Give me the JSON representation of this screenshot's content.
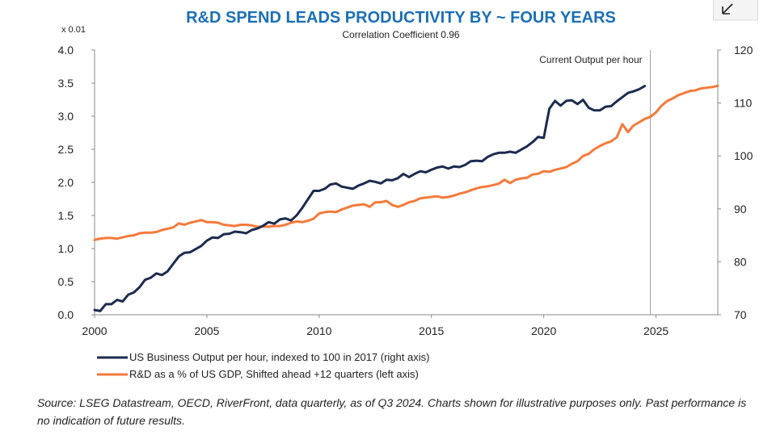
{
  "chart_data": {
    "type": "line",
    "title": "R&D SPEND LEADS PRODUCTIVITY BY ~ FOUR YEARS",
    "subtitle": "Correlation Coefficient 0.96",
    "left_axis": {
      "unit_label": "x 0.01",
      "ylim": [
        0,
        4
      ],
      "ticks": [
        "0.0",
        "0.5",
        "1.0",
        "1.5",
        "2.0",
        "2.5",
        "3.0",
        "3.5",
        "4.0"
      ]
    },
    "right_axis": {
      "ylim": [
        70,
        120
      ],
      "ticks": [
        "70",
        "80",
        "90",
        "100",
        "110",
        "120"
      ]
    },
    "x_axis": {
      "xlim": [
        2000,
        2027.75
      ],
      "ticks": [
        "2000",
        "2005",
        "2010",
        "2015",
        "2020",
        "2025"
      ]
    },
    "annotation": {
      "text": "Current Output per hour",
      "x": 2024.75
    },
    "legend_position": "bottom",
    "grid": false,
    "series": [
      {
        "name": "US Business Output per hour, indexed to 100 in 2017 (right axis)",
        "axis": "right",
        "color": "#1c2b4e",
        "points": [
          [
            2000.0,
            70.9
          ],
          [
            2000.25,
            70.7
          ],
          [
            2000.5,
            72.0
          ],
          [
            2000.75,
            72.0
          ],
          [
            2001.0,
            72.8
          ],
          [
            2001.25,
            72.5
          ],
          [
            2001.5,
            73.8
          ],
          [
            2001.75,
            74.2
          ],
          [
            2002.0,
            75.2
          ],
          [
            2002.25,
            76.6
          ],
          [
            2002.5,
            77.0
          ],
          [
            2002.75,
            77.8
          ],
          [
            2003.0,
            77.5
          ],
          [
            2003.25,
            78.2
          ],
          [
            2003.5,
            79.6
          ],
          [
            2003.75,
            81.0
          ],
          [
            2004.0,
            81.7
          ],
          [
            2004.25,
            81.8
          ],
          [
            2004.5,
            82.4
          ],
          [
            2004.75,
            83.0
          ],
          [
            2005.0,
            84.0
          ],
          [
            2005.25,
            84.6
          ],
          [
            2005.5,
            84.5
          ],
          [
            2005.75,
            85.2
          ],
          [
            2006.0,
            85.3
          ],
          [
            2006.25,
            85.7
          ],
          [
            2006.5,
            85.6
          ],
          [
            2006.75,
            85.4
          ],
          [
            2007.0,
            86.0
          ],
          [
            2007.25,
            86.3
          ],
          [
            2007.5,
            86.8
          ],
          [
            2007.75,
            87.5
          ],
          [
            2008.0,
            87.2
          ],
          [
            2008.25,
            88.0
          ],
          [
            2008.5,
            88.2
          ],
          [
            2008.75,
            87.8
          ],
          [
            2009.0,
            88.8
          ],
          [
            2009.25,
            90.2
          ],
          [
            2009.5,
            91.8
          ],
          [
            2009.75,
            93.4
          ],
          [
            2010.0,
            93.4
          ],
          [
            2010.25,
            93.8
          ],
          [
            2010.5,
            94.6
          ],
          [
            2010.75,
            94.8
          ],
          [
            2011.0,
            94.2
          ],
          [
            2011.25,
            94.0
          ],
          [
            2011.5,
            93.8
          ],
          [
            2011.75,
            94.4
          ],
          [
            2012.0,
            94.8
          ],
          [
            2012.25,
            95.3
          ],
          [
            2012.5,
            95.1
          ],
          [
            2012.75,
            94.8
          ],
          [
            2013.0,
            95.5
          ],
          [
            2013.25,
            95.4
          ],
          [
            2013.5,
            95.8
          ],
          [
            2013.75,
            96.6
          ],
          [
            2014.0,
            96.0
          ],
          [
            2014.25,
            96.6
          ],
          [
            2014.5,
            97.1
          ],
          [
            2014.75,
            96.9
          ],
          [
            2015.0,
            97.4
          ],
          [
            2015.25,
            97.8
          ],
          [
            2015.5,
            98.0
          ],
          [
            2015.75,
            97.6
          ],
          [
            2016.0,
            98.0
          ],
          [
            2016.25,
            97.9
          ],
          [
            2016.5,
            98.3
          ],
          [
            2016.75,
            99.0
          ],
          [
            2017.0,
            99.1
          ],
          [
            2017.25,
            99.0
          ],
          [
            2017.5,
            99.8
          ],
          [
            2017.75,
            100.3
          ],
          [
            2018.0,
            100.6
          ],
          [
            2018.25,
            100.6
          ],
          [
            2018.5,
            100.8
          ],
          [
            2018.75,
            100.6
          ],
          [
            2019.0,
            101.2
          ],
          [
            2019.25,
            101.8
          ],
          [
            2019.5,
            102.6
          ],
          [
            2019.75,
            103.6
          ],
          [
            2020.0,
            103.4
          ],
          [
            2020.25,
            108.9
          ],
          [
            2020.5,
            110.4
          ],
          [
            2020.75,
            109.5
          ],
          [
            2021.0,
            110.4
          ],
          [
            2021.25,
            110.5
          ],
          [
            2021.5,
            109.8
          ],
          [
            2021.75,
            110.6
          ],
          [
            2022.0,
            109.1
          ],
          [
            2022.25,
            108.6
          ],
          [
            2022.5,
            108.6
          ],
          [
            2022.75,
            109.3
          ],
          [
            2023.0,
            109.4
          ],
          [
            2023.25,
            110.3
          ],
          [
            2023.5,
            111.1
          ],
          [
            2023.75,
            111.9
          ],
          [
            2024.0,
            112.2
          ],
          [
            2024.25,
            112.6
          ],
          [
            2024.5,
            113.2
          ]
        ]
      },
      {
        "name": "R&D as a % of US GDP, Shifted ahead +12 quarters (left axis)",
        "axis": "left",
        "color": "#f47a3a",
        "points": [
          [
            2000.0,
            1.13
          ],
          [
            2000.25,
            1.15
          ],
          [
            2000.5,
            1.16
          ],
          [
            2000.75,
            1.16
          ],
          [
            2001.0,
            1.15
          ],
          [
            2001.25,
            1.17
          ],
          [
            2001.5,
            1.19
          ],
          [
            2001.75,
            1.2
          ],
          [
            2002.0,
            1.23
          ],
          [
            2002.25,
            1.24
          ],
          [
            2002.5,
            1.24
          ],
          [
            2002.75,
            1.25
          ],
          [
            2003.0,
            1.28
          ],
          [
            2003.25,
            1.3
          ],
          [
            2003.5,
            1.32
          ],
          [
            2003.75,
            1.38
          ],
          [
            2004.0,
            1.36
          ],
          [
            2004.25,
            1.39
          ],
          [
            2004.5,
            1.41
          ],
          [
            2004.75,
            1.43
          ],
          [
            2005.0,
            1.4
          ],
          [
            2005.25,
            1.4
          ],
          [
            2005.5,
            1.39
          ],
          [
            2005.75,
            1.36
          ],
          [
            2006.0,
            1.35
          ],
          [
            2006.25,
            1.34
          ],
          [
            2006.5,
            1.36
          ],
          [
            2006.75,
            1.36
          ],
          [
            2007.0,
            1.35
          ],
          [
            2007.25,
            1.33
          ],
          [
            2007.5,
            1.33
          ],
          [
            2007.75,
            1.33
          ],
          [
            2008.0,
            1.34
          ],
          [
            2008.25,
            1.34
          ],
          [
            2008.5,
            1.36
          ],
          [
            2008.75,
            1.39
          ],
          [
            2009.0,
            1.41
          ],
          [
            2009.25,
            1.4
          ],
          [
            2009.5,
            1.42
          ],
          [
            2009.75,
            1.45
          ],
          [
            2010.0,
            1.53
          ],
          [
            2010.25,
            1.55
          ],
          [
            2010.5,
            1.56
          ],
          [
            2010.75,
            1.55
          ],
          [
            2011.0,
            1.59
          ],
          [
            2011.25,
            1.62
          ],
          [
            2011.5,
            1.65
          ],
          [
            2011.75,
            1.66
          ],
          [
            2012.0,
            1.67
          ],
          [
            2012.25,
            1.63
          ],
          [
            2012.5,
            1.7
          ],
          [
            2012.75,
            1.7
          ],
          [
            2013.0,
            1.72
          ],
          [
            2013.25,
            1.66
          ],
          [
            2013.5,
            1.63
          ],
          [
            2013.75,
            1.66
          ],
          [
            2014.0,
            1.7
          ],
          [
            2014.25,
            1.72
          ],
          [
            2014.5,
            1.76
          ],
          [
            2014.75,
            1.77
          ],
          [
            2015.0,
            1.78
          ],
          [
            2015.25,
            1.79
          ],
          [
            2015.5,
            1.77
          ],
          [
            2015.75,
            1.78
          ],
          [
            2016.0,
            1.8
          ],
          [
            2016.25,
            1.83
          ],
          [
            2016.5,
            1.85
          ],
          [
            2016.75,
            1.88
          ],
          [
            2017.0,
            1.91
          ],
          [
            2017.25,
            1.93
          ],
          [
            2017.5,
            1.94
          ],
          [
            2017.75,
            1.96
          ],
          [
            2018.0,
            1.98
          ],
          [
            2018.25,
            2.04
          ],
          [
            2018.5,
            1.99
          ],
          [
            2018.75,
            2.04
          ],
          [
            2019.0,
            2.06
          ],
          [
            2019.25,
            2.07
          ],
          [
            2019.5,
            2.12
          ],
          [
            2019.75,
            2.13
          ],
          [
            2020.0,
            2.17
          ],
          [
            2020.25,
            2.16
          ],
          [
            2020.5,
            2.19
          ],
          [
            2020.75,
            2.21
          ],
          [
            2021.0,
            2.23
          ],
          [
            2021.25,
            2.28
          ],
          [
            2021.5,
            2.32
          ],
          [
            2021.75,
            2.4
          ],
          [
            2022.0,
            2.43
          ],
          [
            2022.25,
            2.5
          ],
          [
            2022.5,
            2.55
          ],
          [
            2022.75,
            2.59
          ],
          [
            2023.0,
            2.62
          ],
          [
            2023.25,
            2.68
          ],
          [
            2023.5,
            2.88
          ],
          [
            2023.75,
            2.76
          ],
          [
            2024.0,
            2.86
          ],
          [
            2024.25,
            2.91
          ],
          [
            2024.5,
            2.96
          ],
          [
            2024.75,
            2.99
          ],
          [
            2025.0,
            3.06
          ],
          [
            2025.25,
            3.16
          ],
          [
            2025.5,
            3.23
          ],
          [
            2025.75,
            3.27
          ],
          [
            2026.0,
            3.32
          ],
          [
            2026.25,
            3.35
          ],
          [
            2026.5,
            3.38
          ],
          [
            2026.75,
            3.39
          ],
          [
            2027.0,
            3.42
          ],
          [
            2027.25,
            3.43
          ],
          [
            2027.5,
            3.44
          ],
          [
            2027.75,
            3.46
          ]
        ]
      }
    ]
  },
  "source_note": "Source: LSEG Datastream, OECD, RiverFront, data quarterly, as of Q3 2024. Charts shown for illustrative purposes only. Past performance is no indication of future results.",
  "icons": {
    "corner": "open-in-new-icon"
  }
}
